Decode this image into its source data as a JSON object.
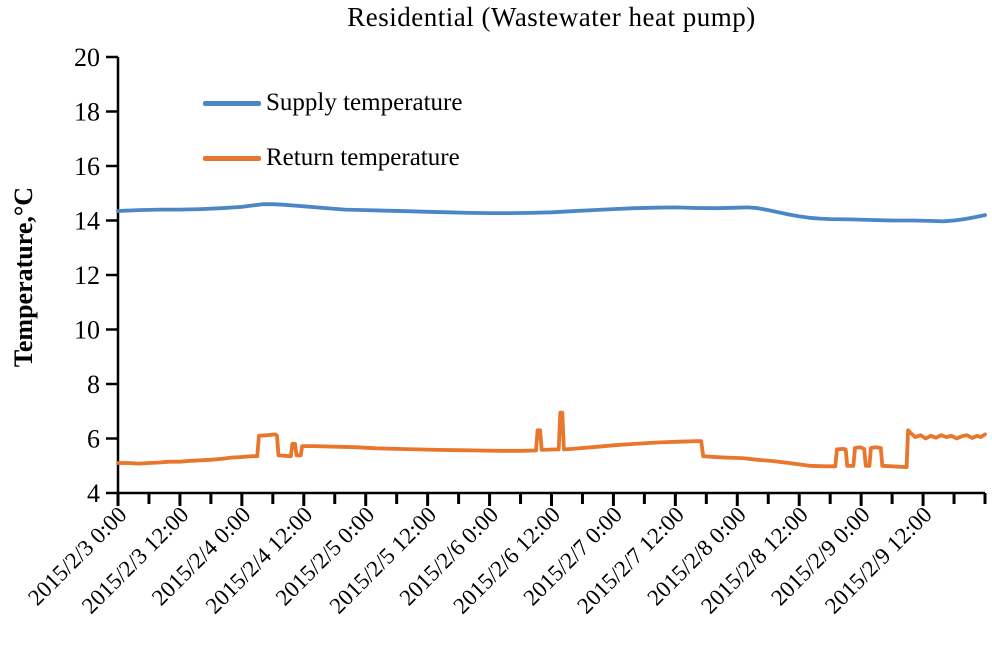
{
  "title": "Residential (Wastewater heat pump)",
  "y_axis_title": "Temperature,°C",
  "chart_data": {
    "type": "line",
    "title": "Residential (Wastewater heat pump)",
    "ylabel": "Temperature,°C",
    "xlabel": "",
    "grid": false,
    "legend_position": "top-left-inside",
    "ylim": [
      4,
      20
    ],
    "y_ticks": [
      4,
      6,
      8,
      10,
      12,
      14,
      16,
      18,
      20
    ],
    "x_unit": "hours since 2015/2/3 0:00",
    "xlim_hours": [
      0,
      168
    ],
    "x_tick_interval_hours": 6,
    "x_label_interval_hours": 12,
    "x_tick_labels": [
      "2015/2/3 0:00",
      "2015/2/3 12:00",
      "2015/2/4 0:00",
      "2015/2/4 12:00",
      "2015/2/5 0:00",
      "2015/2/5 12:00",
      "2015/2/6 0:00",
      "2015/2/6 12:00",
      "2015/2/7 0:00",
      "2015/2/7 12:00",
      "2015/2/8 0:00",
      "2015/2/8 12:00",
      "2015/2/9 0:00",
      "2015/2/9 12:00"
    ],
    "series": [
      {
        "name": "Supply temperature",
        "color": "#4B87C7",
        "points": [
          [
            0,
            14.35
          ],
          [
            4,
            14.38
          ],
          [
            8,
            14.4
          ],
          [
            12,
            14.4
          ],
          [
            16,
            14.42
          ],
          [
            20,
            14.45
          ],
          [
            24,
            14.5
          ],
          [
            26,
            14.55
          ],
          [
            28,
            14.6
          ],
          [
            30,
            14.6
          ],
          [
            32,
            14.58
          ],
          [
            34,
            14.55
          ],
          [
            36,
            14.52
          ],
          [
            40,
            14.46
          ],
          [
            44,
            14.4
          ],
          [
            48,
            14.38
          ],
          [
            52,
            14.36
          ],
          [
            56,
            14.34
          ],
          [
            60,
            14.32
          ],
          [
            64,
            14.3
          ],
          [
            68,
            14.28
          ],
          [
            72,
            14.27
          ],
          [
            76,
            14.27
          ],
          [
            80,
            14.28
          ],
          [
            84,
            14.3
          ],
          [
            88,
            14.34
          ],
          [
            92,
            14.38
          ],
          [
            96,
            14.42
          ],
          [
            100,
            14.45
          ],
          [
            104,
            14.47
          ],
          [
            108,
            14.48
          ],
          [
            112,
            14.46
          ],
          [
            116,
            14.45
          ],
          [
            120,
            14.47
          ],
          [
            122,
            14.48
          ],
          [
            124,
            14.45
          ],
          [
            126,
            14.38
          ],
          [
            128,
            14.3
          ],
          [
            130,
            14.22
          ],
          [
            132,
            14.15
          ],
          [
            134,
            14.1
          ],
          [
            136,
            14.07
          ],
          [
            138,
            14.05
          ],
          [
            142,
            14.04
          ],
          [
            146,
            14.02
          ],
          [
            150,
            14.0
          ],
          [
            154,
            14.0
          ],
          [
            158,
            13.98
          ],
          [
            160,
            13.97
          ],
          [
            162,
            14.0
          ],
          [
            164,
            14.05
          ],
          [
            166,
            14.12
          ],
          [
            168,
            14.2
          ]
        ]
      },
      {
        "name": "Return temperature",
        "color": "#E8762C",
        "points": [
          [
            0,
            5.1
          ],
          [
            2,
            5.1
          ],
          [
            4,
            5.08
          ],
          [
            6,
            5.1
          ],
          [
            8,
            5.12
          ],
          [
            10,
            5.15
          ],
          [
            12,
            5.15
          ],
          [
            14,
            5.18
          ],
          [
            16,
            5.2
          ],
          [
            18,
            5.22
          ],
          [
            20,
            5.25
          ],
          [
            22,
            5.3
          ],
          [
            24,
            5.32
          ],
          [
            26,
            5.35
          ],
          [
            27,
            5.35
          ],
          [
            27.3,
            6.1
          ],
          [
            29,
            6.12
          ],
          [
            30.5,
            6.15
          ],
          [
            30.8,
            6.1
          ],
          [
            31.1,
            5.38
          ],
          [
            33.5,
            5.35
          ],
          [
            33.8,
            5.8
          ],
          [
            34.3,
            5.8
          ],
          [
            34.6,
            5.38
          ],
          [
            35.4,
            5.38
          ],
          [
            35.7,
            5.72
          ],
          [
            38,
            5.72
          ],
          [
            42,
            5.7
          ],
          [
            46,
            5.68
          ],
          [
            50,
            5.64
          ],
          [
            54,
            5.62
          ],
          [
            58,
            5.6
          ],
          [
            62,
            5.58
          ],
          [
            66,
            5.57
          ],
          [
            70,
            5.56
          ],
          [
            74,
            5.55
          ],
          [
            78,
            5.55
          ],
          [
            81,
            5.56
          ],
          [
            81.3,
            6.3
          ],
          [
            81.8,
            6.3
          ],
          [
            82.1,
            5.58
          ],
          [
            85,
            5.6
          ],
          [
            85.4,
            5.6
          ],
          [
            85.7,
            6.95
          ],
          [
            86.1,
            6.95
          ],
          [
            86.4,
            5.6
          ],
          [
            88,
            5.62
          ],
          [
            92,
            5.68
          ],
          [
            96,
            5.75
          ],
          [
            100,
            5.8
          ],
          [
            104,
            5.85
          ],
          [
            108,
            5.88
          ],
          [
            112,
            5.9
          ],
          [
            113,
            5.9
          ],
          [
            113.4,
            5.35
          ],
          [
            115,
            5.33
          ],
          [
            118,
            5.3
          ],
          [
            121,
            5.28
          ],
          [
            124,
            5.22
          ],
          [
            127,
            5.17
          ],
          [
            130,
            5.1
          ],
          [
            132,
            5.05
          ],
          [
            134,
            5.0
          ],
          [
            137,
            4.98
          ],
          [
            139,
            4.98
          ],
          [
            139.3,
            5.6
          ],
          [
            140.5,
            5.62
          ],
          [
            141,
            5.6
          ],
          [
            141.3,
            5.0
          ],
          [
            142.5,
            5.0
          ],
          [
            142.8,
            5.65
          ],
          [
            143.8,
            5.68
          ],
          [
            144.6,
            5.62
          ],
          [
            144.9,
            5.0
          ],
          [
            145.6,
            5.0
          ],
          [
            145.9,
            5.65
          ],
          [
            146.8,
            5.68
          ],
          [
            147.8,
            5.65
          ],
          [
            148.1,
            5.0
          ],
          [
            150,
            4.98
          ],
          [
            152.8,
            4.95
          ],
          [
            153.1,
            6.3
          ],
          [
            153.6,
            6.2
          ],
          [
            154.5,
            6.05
          ],
          [
            155.5,
            6.12
          ],
          [
            156.5,
            6.0
          ],
          [
            157.5,
            6.1
          ],
          [
            158.5,
            6.03
          ],
          [
            159.5,
            6.12
          ],
          [
            160.5,
            6.05
          ],
          [
            161.5,
            6.1
          ],
          [
            162.5,
            6.0
          ],
          [
            163.5,
            6.08
          ],
          [
            164.5,
            6.12
          ],
          [
            165.5,
            6.02
          ],
          [
            166.5,
            6.1
          ],
          [
            167.2,
            6.05
          ],
          [
            168,
            6.15
          ]
        ]
      }
    ]
  }
}
